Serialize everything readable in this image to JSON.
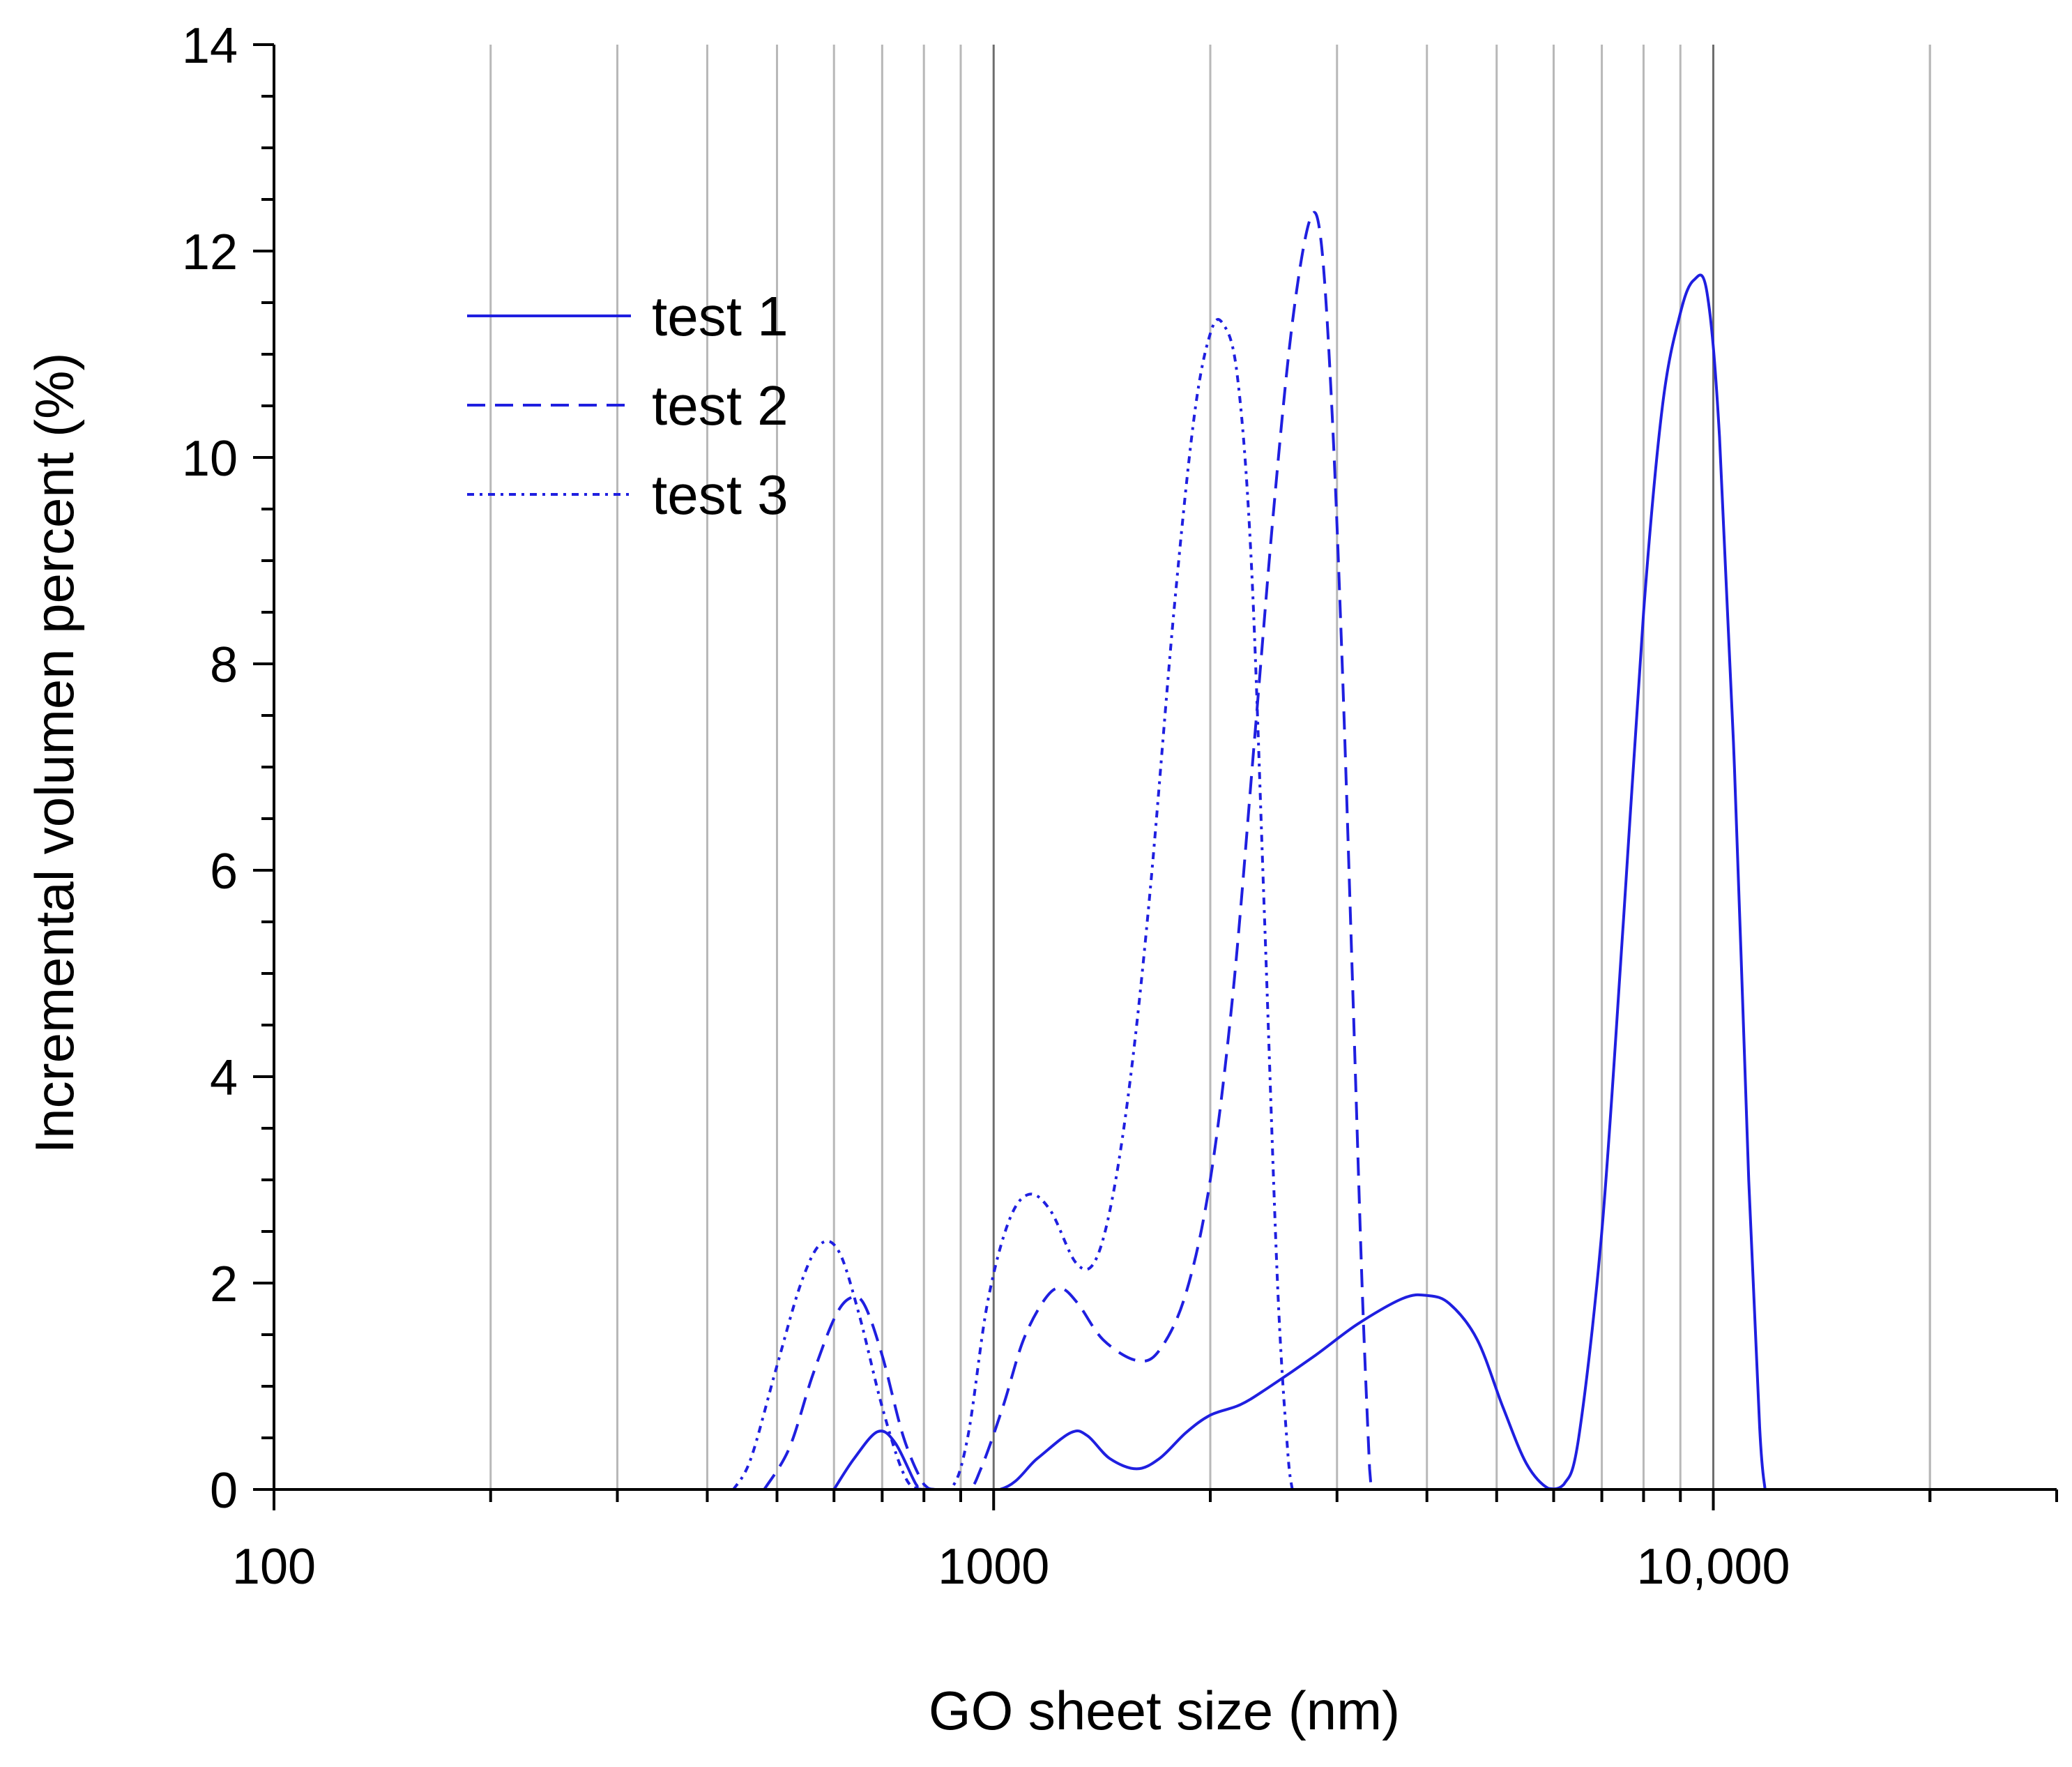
{
  "chart_data": {
    "type": "line",
    "title": "",
    "xlabel": "GO sheet size (nm)",
    "ylabel": "Incremental volumen percent (%)",
    "xscale": "log",
    "xlim": [
      100,
      30000
    ],
    "ylim": [
      0,
      14
    ],
    "x_ticks": [
      {
        "value": 100,
        "label": "100"
      },
      {
        "value": 1000,
        "label": "1000"
      },
      {
        "value": 10000,
        "label": "10,000"
      }
    ],
    "y_ticks": [
      {
        "value": 0,
        "label": "0"
      },
      {
        "value": 2,
        "label": "2"
      },
      {
        "value": 4,
        "label": "4"
      },
      {
        "value": 6,
        "label": "6"
      },
      {
        "value": 8,
        "label": "8"
      },
      {
        "value": 10,
        "label": "10"
      },
      {
        "value": 12,
        "label": "12"
      },
      {
        "value": 14,
        "label": "14"
      }
    ],
    "vertical_grid": true,
    "legend_position": "top-left",
    "series": [
      {
        "name": "test 1",
        "style": "solid",
        "color": "#1f1fe0",
        "points": [
          [
            600,
            0
          ],
          [
            640,
            0.3
          ],
          [
            690,
            0.56
          ],
          [
            730,
            0.45
          ],
          [
            780,
            0.05
          ],
          [
            800,
            0
          ],
          [
            1020,
            0
          ],
          [
            1150,
            0.3
          ],
          [
            1280,
            0.55
          ],
          [
            1350,
            0.52
          ],
          [
            1450,
            0.3
          ],
          [
            1580,
            0.2
          ],
          [
            1700,
            0.3
          ],
          [
            1850,
            0.55
          ],
          [
            2000,
            0.72
          ],
          [
            2200,
            0.82
          ],
          [
            2400,
            0.98
          ],
          [
            2800,
            1.3
          ],
          [
            3200,
            1.6
          ],
          [
            3700,
            1.85
          ],
          [
            4000,
            1.88
          ],
          [
            4300,
            1.8
          ],
          [
            4700,
            1.45
          ],
          [
            5100,
            0.8
          ],
          [
            5500,
            0.25
          ],
          [
            5900,
            0.01
          ],
          [
            6200,
            0.05
          ],
          [
            6500,
            0.5
          ],
          [
            7000,
            2.5
          ],
          [
            7500,
            5.5
          ],
          [
            8000,
            8.5
          ],
          [
            8500,
            10.5
          ],
          [
            9000,
            11.4
          ],
          [
            9400,
            11.72
          ],
          [
            9800,
            11.6
          ],
          [
            10200,
            10.2
          ],
          [
            10700,
            7
          ],
          [
            11200,
            3
          ],
          [
            11600,
            0.6
          ],
          [
            11800,
            0
          ]
        ]
      },
      {
        "name": "test 2",
        "style": "dashed",
        "color": "#1f1fe0",
        "points": [
          [
            480,
            0
          ],
          [
            520,
            0.4
          ],
          [
            560,
            1.1
          ],
          [
            600,
            1.65
          ],
          [
            630,
            1.85
          ],
          [
            660,
            1.8
          ],
          [
            700,
            1.3
          ],
          [
            750,
            0.5
          ],
          [
            800,
            0.05
          ],
          [
            830,
            0
          ],
          [
            920,
            0
          ],
          [
            960,
            0.2
          ],
          [
            1030,
            0.8
          ],
          [
            1100,
            1.45
          ],
          [
            1180,
            1.85
          ],
          [
            1240,
            1.95
          ],
          [
            1310,
            1.8
          ],
          [
            1420,
            1.45
          ],
          [
            1580,
            1.25
          ],
          [
            1700,
            1.35
          ],
          [
            1850,
            1.9
          ],
          [
            2000,
            3.0
          ],
          [
            2150,
            4.8
          ],
          [
            2300,
            7.2
          ],
          [
            2450,
            9.5
          ],
          [
            2600,
            11.3
          ],
          [
            2750,
            12.3
          ],
          [
            2850,
            12.1
          ],
          [
            2950,
            10.5
          ],
          [
            3050,
            8.0
          ],
          [
            3150,
            5.0
          ],
          [
            3250,
            2.0
          ],
          [
            3330,
            0.2
          ],
          [
            3350,
            0
          ]
        ]
      },
      {
        "name": "test 3",
        "style": "dash-dot",
        "color": "#1f1fe0",
        "points": [
          [
            435,
            0
          ],
          [
            460,
            0.3
          ],
          [
            500,
            1.2
          ],
          [
            540,
            2.0
          ],
          [
            575,
            2.38
          ],
          [
            610,
            2.3
          ],
          [
            650,
            1.7
          ],
          [
            700,
            0.8
          ],
          [
            750,
            0.15
          ],
          [
            790,
            0
          ],
          [
            870,
            0
          ],
          [
            920,
            0.5
          ],
          [
            980,
            1.8
          ],
          [
            1050,
            2.6
          ],
          [
            1120,
            2.86
          ],
          [
            1200,
            2.7
          ],
          [
            1300,
            2.2
          ],
          [
            1380,
            2.2
          ],
          [
            1460,
            2.8
          ],
          [
            1550,
            4.0
          ],
          [
            1650,
            5.8
          ],
          [
            1780,
            8.5
          ],
          [
            1900,
            10.4
          ],
          [
            2000,
            11.2
          ],
          [
            2080,
            11.3
          ],
          [
            2180,
            10.8
          ],
          [
            2280,
            9.0
          ],
          [
            2380,
            5.5
          ],
          [
            2480,
            2.0
          ],
          [
            2560,
            0.4
          ],
          [
            2600,
            0
          ]
        ]
      }
    ]
  }
}
